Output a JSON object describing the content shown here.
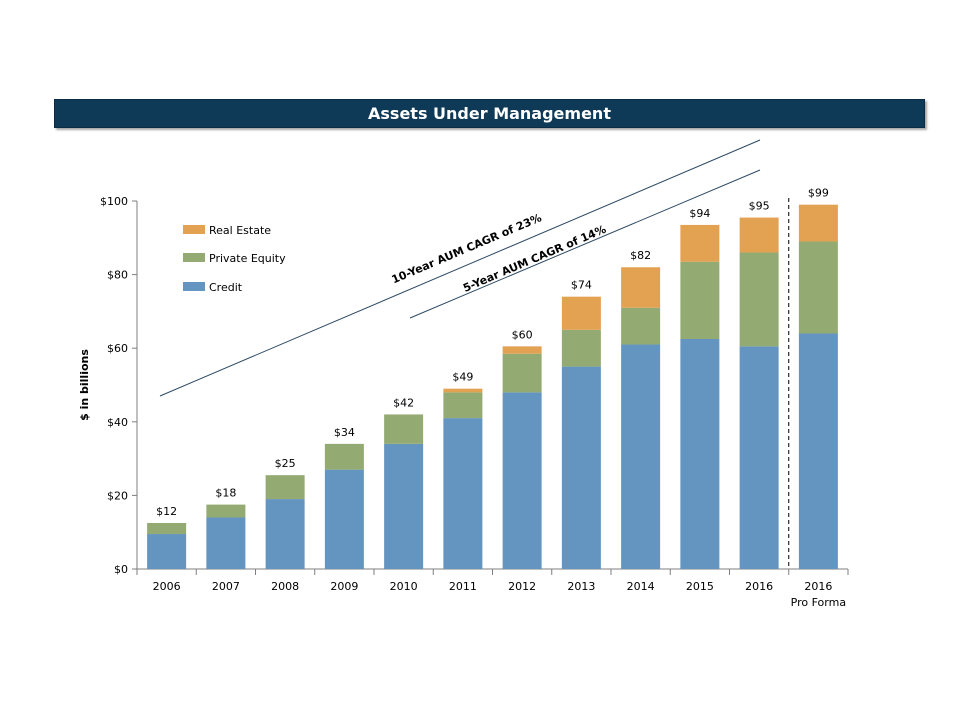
{
  "title": "Assets Under Management",
  "chart_data": {
    "type": "bar",
    "stacked": true,
    "title": "Assets Under Management",
    "ylabel": "$ in billions",
    "xlabel": "",
    "ylim": [
      0,
      100
    ],
    "yticks": [
      0,
      20,
      40,
      60,
      80,
      100
    ],
    "ytick_labels": [
      "$0",
      "$20",
      "$40",
      "$60",
      "$80",
      "$100"
    ],
    "categories": [
      "2006",
      "2007",
      "2008",
      "2009",
      "2010",
      "2011",
      "2012",
      "2013",
      "2014",
      "2015",
      "2016",
      "2016"
    ],
    "category_sublabels": [
      "",
      "",
      "",
      "",
      "",
      "",
      "",
      "",
      "",
      "",
      "",
      "Pro Forma"
    ],
    "series": [
      {
        "name": "Credit",
        "color": "#6494c0",
        "values": [
          9.5,
          14,
          19,
          27,
          34,
          41,
          48,
          55,
          61,
          62.5,
          60.5,
          64
        ]
      },
      {
        "name": "Private Equity",
        "color": "#93ab72",
        "values": [
          3,
          3.5,
          6.5,
          7,
          8,
          7,
          10.5,
          10,
          10,
          21,
          25.5,
          25
        ]
      },
      {
        "name": "Real Estate",
        "color": "#e3a152",
        "values": [
          0,
          0,
          0,
          0,
          0,
          1,
          2,
          9,
          11,
          10,
          9.5,
          10
        ]
      }
    ],
    "totals": [
      "$12",
      "$18",
      "$25",
      "$34",
      "$42",
      "$49",
      "$60",
      "$74",
      "$82",
      "$94",
      "$95",
      "$99"
    ],
    "legend": {
      "placement": "top-left",
      "entries": [
        "Real Estate",
        "Private Equity",
        "Credit"
      ]
    },
    "annotations": [
      "10-Year AUM CAGR of 23%",
      "5-Year AUM CAGR of 14%"
    ],
    "grid": false
  }
}
